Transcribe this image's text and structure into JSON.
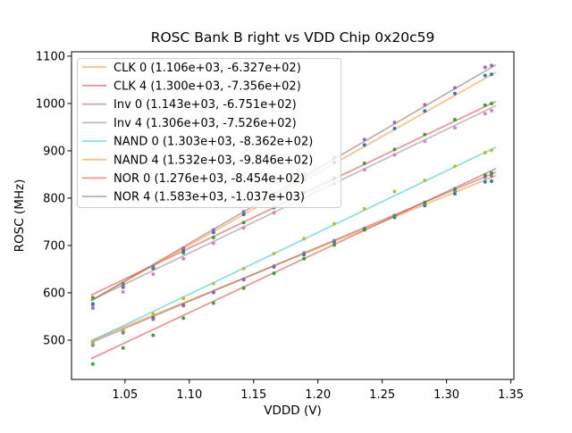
{
  "chart_data": {
    "type": "scatter",
    "title": "ROSC Bank B right vs VDD Chip 0x20c59",
    "xlabel": "VDDD (V)",
    "ylabel": "ROSC (MHz)",
    "grid": false,
    "legend_position": "upper left",
    "xlim": [
      1.0084,
      1.3524
    ],
    "ylim": [
      417,
      1109.2
    ],
    "fit_range": [
      1.024,
      1.338
    ],
    "xticks": {
      "values": [
        1.05,
        1.1,
        1.15,
        1.2,
        1.25,
        1.3,
        1.35
      ],
      "labels": [
        "1.05",
        "1.10",
        "1.15",
        "1.20",
        "1.25",
        "1.30",
        "1.35"
      ]
    },
    "yticks": {
      "values": [
        500,
        600,
        700,
        800,
        900,
        1000,
        1100
      ],
      "labels": [
        "500",
        "600",
        "700",
        "800",
        "900",
        "1000",
        "1100"
      ]
    },
    "x_points": [
      1.025,
      1.0485,
      1.0719,
      1.0954,
      1.1188,
      1.1423,
      1.1658,
      1.1892,
      1.2127,
      1.2362,
      1.2596,
      1.2831,
      1.3065,
      1.33,
      1.335
    ],
    "series": [
      {
        "name": "CLK 0",
        "legend_label": "CLK 0 (1.106e+03, -6.327e+02)",
        "fit": {
          "slope": 1106.0,
          "intercept": -632.7
        },
        "line_color": "#ff7f0e",
        "line_alpha": 0.5,
        "marker_color": "#1f77b4",
        "residuals": [
          -8,
          -9,
          -6,
          -5,
          -4,
          -3,
          -2,
          -2,
          -1,
          0,
          -1,
          -2,
          -3,
          -4,
          -8
        ]
      },
      {
        "name": "CLK 4",
        "legend_label": "CLK 4 (1.300e+03, -7.356e+02)",
        "fit": {
          "slope": 1300.0,
          "intercept": -735.6
        },
        "line_color": "#d62728",
        "line_alpha": 0.5,
        "marker_color": "#2ca02c",
        "residuals": [
          -7,
          -8,
          -5,
          -4,
          -2,
          -1,
          0,
          1,
          1,
          2,
          1,
          2,
          3,
          3,
          0
        ]
      },
      {
        "name": "Inv 0",
        "legend_label": "Inv 0 (1.143e+03, -6.751e+02)",
        "fit": {
          "slope": 1143.0,
          "intercept": -675.1
        },
        "line_color": "#8c564b",
        "line_alpha": 0.5,
        "marker_color": "#9467bd",
        "residuals": [
          -7,
          -8,
          -6,
          -4,
          -3,
          -2,
          -1,
          0,
          -1,
          -2,
          -1,
          -3,
          -2,
          -1,
          -4
        ]
      },
      {
        "name": "Inv 4",
        "legend_label": "Inv 4 (1.306e+03, -7.526e+02)",
        "fit": {
          "slope": 1306.0,
          "intercept": -752.6
        },
        "line_color": "#7f7f7f",
        "line_alpha": 0.5,
        "marker_color": "#e377c2",
        "residuals": [
          -12,
          -15,
          -8,
          -6,
          -4,
          -2,
          -1,
          0,
          -1,
          -2,
          -1,
          -3,
          -5,
          -6,
          -6
        ]
      },
      {
        "name": "NAND 0",
        "legend_label": "NAND 0 (1.303e+03, -8.362e+02)",
        "fit": {
          "slope": 1303.0,
          "intercept": -836.2
        },
        "line_color": "#17becf",
        "line_alpha": 0.5,
        "marker_color": "#bcbd22",
        "residuals": [
          -6,
          -8,
          -5,
          -3,
          -2,
          -1,
          0,
          1,
          2,
          3,
          9,
          2,
          1,
          -1,
          -2
        ]
      },
      {
        "name": "NAND 4",
        "legend_label": "NAND 4 (1.532e+03, -9.846e+02)",
        "fit": {
          "slope": 1532.0,
          "intercept": -984.6
        },
        "line_color": "#ff7f0e",
        "line_alpha": 0.5,
        "marker_color": "#1f77b4",
        "residuals": [
          -9,
          -10,
          -6,
          -4,
          -2,
          0,
          1,
          2,
          2,
          3,
          2,
          3,
          4,
          6,
          1
        ]
      },
      {
        "name": "NOR 0",
        "legend_label": "NOR 0 (1.276e+03, -8.454e+02)",
        "fit": {
          "slope": 1276.0,
          "intercept": -845.4
        },
        "line_color": "#d62728",
        "line_alpha": 0.5,
        "marker_color": "#2ca02c",
        "residuals": [
          -13,
          -9,
          -12,
          -6,
          -4,
          -2,
          -1,
          0,
          -1,
          1,
          0,
          -1,
          -2,
          -3,
          -5
        ]
      },
      {
        "name": "NOR 4",
        "legend_label": "NOR 4 (1.583e+03, -1.037e+03)",
        "fit": {
          "slope": 1583.0,
          "intercept": -1037.0
        },
        "line_color": "#8c564b",
        "line_alpha": 0.5,
        "marker_color": "#9467bd",
        "residuals": [
          -18,
          -8,
          -5,
          -3,
          -1,
          0,
          2,
          3,
          3,
          4,
          3,
          3,
          2,
          8,
          4
        ]
      }
    ]
  }
}
